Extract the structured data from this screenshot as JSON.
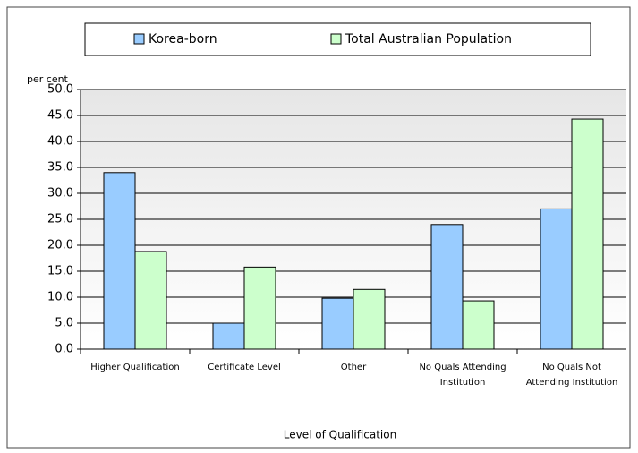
{
  "chart_data": {
    "type": "bar",
    "y_label": "per cent",
    "x_label": "Level of Qualification",
    "categories": [
      "Higher Qualification",
      "Certificate Level",
      "Other",
      "No Quals Attending Institution",
      "No Quals Not Attending Institution"
    ],
    "series": [
      {
        "name": "Korea-born",
        "color": "#99ccff",
        "values": [
          34.0,
          5.0,
          9.8,
          24.0,
          27.0
        ]
      },
      {
        "name": "Total Australian Population",
        "color": "#ccffcc",
        "values": [
          18.8,
          15.8,
          11.5,
          9.3,
          44.3
        ]
      }
    ],
    "ylim": [
      0,
      50
    ],
    "yticks": [
      {
        "value": 0,
        "label": "0.0"
      },
      {
        "value": 5,
        "label": "5.0"
      },
      {
        "value": 10,
        "label": "10.0"
      },
      {
        "value": 15,
        "label": "15.0"
      },
      {
        "value": 20,
        "label": "20.0"
      },
      {
        "value": 25,
        "label": "25.0"
      },
      {
        "value": 30,
        "label": "30.0"
      },
      {
        "value": 35,
        "label": "35.0"
      },
      {
        "value": 40,
        "label": "40.0"
      },
      {
        "value": 45,
        "label": "45.0"
      },
      {
        "value": 50,
        "label": "50.0"
      }
    ],
    "grid": true,
    "legend": "top"
  }
}
